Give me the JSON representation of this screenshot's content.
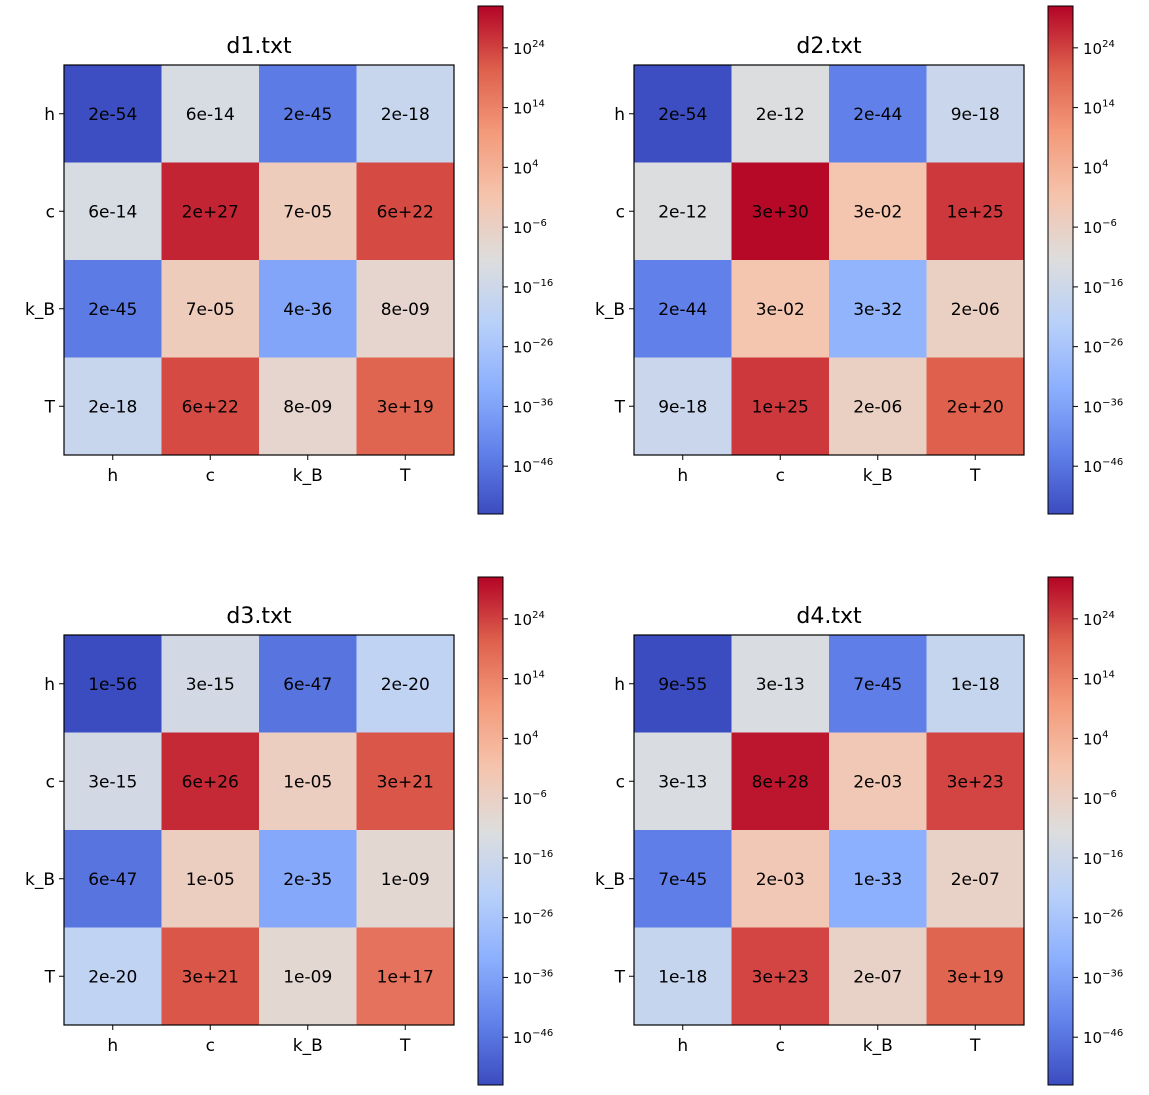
{
  "chart_data": [
    {
      "type": "heatmap",
      "title": "d1.txt",
      "xlabels": [
        "h",
        "c",
        "k_B",
        "T"
      ],
      "ylabels": [
        "h",
        "c",
        "k_B",
        "T"
      ],
      "matrix": [
        [
          2e-54,
          6e-14,
          2e-45,
          2e-18
        ],
        [
          6e-14,
          2e+27,
          7e-05,
          6e+22
        ],
        [
          2e-45,
          7e-05,
          4e-36,
          8e-09
        ],
        [
          2e-18,
          6e+22,
          8e-09,
          3e+19
        ]
      ],
      "cell_labels": [
        [
          "2e-54",
          "6e-14",
          "2e-45",
          "2e-18"
        ],
        [
          "6e-14",
          "2e+27",
          "7e-05",
          "6e+22"
        ],
        [
          "2e-45",
          "7e-05",
          "4e-36",
          "8e-09"
        ],
        [
          "2e-18",
          "6e+22",
          "8e-09",
          "3e+19"
        ]
      ],
      "colorbar": {
        "scale": "log",
        "colormap": "coolwarm",
        "range": [
          1e-54,
          1e+31
        ],
        "tick_base": "10",
        "tick_exponents": [
          "24",
          "14",
          "4",
          "−6",
          "−16",
          "−26",
          "−36",
          "−46"
        ],
        "tick_values": [
          24,
          14,
          4,
          -6,
          -16,
          -26,
          -36,
          -46
        ]
      }
    },
    {
      "type": "heatmap",
      "title": "d2.txt",
      "xlabels": [
        "h",
        "c",
        "k_B",
        "T"
      ],
      "ylabels": [
        "h",
        "c",
        "k_B",
        "T"
      ],
      "matrix": [
        [
          2e-54,
          2e-12,
          2e-44,
          9e-18
        ],
        [
          2e-12,
          3e+30,
          0.03,
          1e+25
        ],
        [
          2e-44,
          0.03,
          3e-32,
          2e-06
        ],
        [
          9e-18,
          1e+25,
          2e-06,
          2e+20
        ]
      ],
      "cell_labels": [
        [
          "2e-54",
          "2e-12",
          "2e-44",
          "9e-18"
        ],
        [
          "2e-12",
          "3e+30",
          "3e-02",
          "1e+25"
        ],
        [
          "2e-44",
          "3e-02",
          "3e-32",
          "2e-06"
        ],
        [
          "9e-18",
          "1e+25",
          "2e-06",
          "2e+20"
        ]
      ],
      "colorbar": {
        "scale": "log",
        "colormap": "coolwarm",
        "range": [
          1e-54,
          1e+31
        ],
        "tick_base": "10",
        "tick_exponents": [
          "24",
          "14",
          "4",
          "−6",
          "−16",
          "−26",
          "−36",
          "−46"
        ],
        "tick_values": [
          24,
          14,
          4,
          -6,
          -16,
          -26,
          -36,
          -46
        ]
      }
    },
    {
      "type": "heatmap",
      "title": "d3.txt",
      "xlabels": [
        "h",
        "c",
        "k_B",
        "T"
      ],
      "ylabels": [
        "h",
        "c",
        "k_B",
        "T"
      ],
      "matrix": [
        [
          1e-56,
          3e-15,
          6e-47,
          2e-20
        ],
        [
          3e-15,
          6e+26,
          1e-05,
          3e+21
        ],
        [
          6e-47,
          1e-05,
          2e-35,
          1e-09
        ],
        [
          2e-20,
          3e+21,
          1e-09,
          1e+17
        ]
      ],
      "cell_labels": [
        [
          "1e-56",
          "3e-15",
          "6e-47",
          "2e-20"
        ],
        [
          "3e-15",
          "6e+26",
          "1e-05",
          "3e+21"
        ],
        [
          "6e-47",
          "1e-05",
          "2e-35",
          "1e-09"
        ],
        [
          "2e-20",
          "3e+21",
          "1e-09",
          "1e+17"
        ]
      ],
      "colorbar": {
        "scale": "log",
        "colormap": "coolwarm",
        "range": [
          1e-54,
          1e+31
        ],
        "tick_base": "10",
        "tick_exponents": [
          "24",
          "14",
          "4",
          "−6",
          "−16",
          "−26",
          "−36",
          "−46"
        ],
        "tick_values": [
          24,
          14,
          4,
          -6,
          -16,
          -26,
          -36,
          -46
        ]
      }
    },
    {
      "type": "heatmap",
      "title": "d4.txt",
      "xlabels": [
        "h",
        "c",
        "k_B",
        "T"
      ],
      "ylabels": [
        "h",
        "c",
        "k_B",
        "T"
      ],
      "matrix": [
        [
          9e-55,
          3e-13,
          7e-45,
          1e-18
        ],
        [
          3e-13,
          8e+28,
          0.002,
          3e+23
        ],
        [
          7e-45,
          0.002,
          1e-33,
          2e-07
        ],
        [
          1e-18,
          3e+23,
          2e-07,
          3e+19
        ]
      ],
      "cell_labels": [
        [
          "9e-55",
          "3e-13",
          "7e-45",
          "1e-18"
        ],
        [
          "3e-13",
          "8e+28",
          "2e-03",
          "3e+23"
        ],
        [
          "7e-45",
          "2e-03",
          "1e-33",
          "2e-07"
        ],
        [
          "1e-18",
          "3e+23",
          "2e-07",
          "3e+19"
        ]
      ],
      "colorbar": {
        "scale": "log",
        "colormap": "coolwarm",
        "range": [
          1e-54,
          1e+31
        ],
        "tick_base": "10",
        "tick_exponents": [
          "24",
          "14",
          "4",
          "−6",
          "−16",
          "−26",
          "−36",
          "−46"
        ],
        "tick_values": [
          24,
          14,
          4,
          -6,
          -16,
          -26,
          -36,
          -46
        ]
      }
    }
  ]
}
